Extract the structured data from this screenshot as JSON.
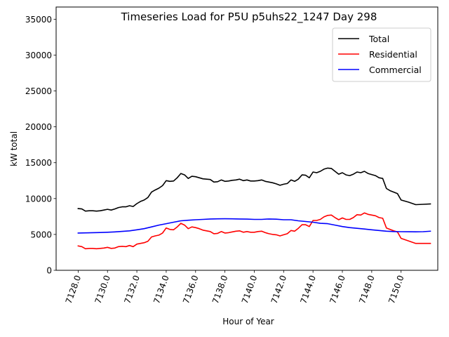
{
  "chart_data": {
    "type": "line",
    "title": "Timeseries Load for P5U p5uhs22_1247  Day 298",
    "xlabel": "Hour of Year",
    "ylabel": "kW total",
    "xlim": [
      7126.5,
      7152.5
    ],
    "ylim": [
      0,
      36700
    ],
    "xticks": [
      7128,
      7130,
      7132,
      7134,
      7136,
      7138,
      7140,
      7142,
      7144,
      7146,
      7148,
      7150
    ],
    "xtick_labels": [
      "7128.0",
      "7130.0",
      "7132.0",
      "7134.0",
      "7136.0",
      "7138.0",
      "7140.0",
      "7142.0",
      "7144.0",
      "7146.0",
      "7148.0",
      "7150.0"
    ],
    "yticks": [
      0,
      5000,
      10000,
      15000,
      20000,
      25000,
      30000,
      35000
    ],
    "ytick_labels": [
      "0",
      "5000",
      "10000",
      "15000",
      "20000",
      "25000",
      "30000",
      "35000"
    ],
    "legend_position": "top-right",
    "series": [
      {
        "name": "Total",
        "color": "#000000",
        "points": [
          [
            7128.0,
            8600
          ],
          [
            7128.25,
            8550
          ],
          [
            7128.5,
            8250
          ],
          [
            7128.75,
            8300
          ],
          [
            7129.0,
            8300
          ],
          [
            7129.25,
            8250
          ],
          [
            7129.5,
            8300
          ],
          [
            7129.75,
            8400
          ],
          [
            7130.0,
            8500
          ],
          [
            7130.25,
            8400
          ],
          [
            7130.5,
            8550
          ],
          [
            7130.75,
            8750
          ],
          [
            7131.0,
            8850
          ],
          [
            7131.25,
            8850
          ],
          [
            7131.5,
            9000
          ],
          [
            7131.75,
            8900
          ],
          [
            7132.0,
            9300
          ],
          [
            7132.25,
            9600
          ],
          [
            7132.5,
            9800
          ],
          [
            7132.75,
            10150
          ],
          [
            7133.0,
            10900
          ],
          [
            7133.25,
            11200
          ],
          [
            7133.5,
            11450
          ],
          [
            7133.75,
            11800
          ],
          [
            7134.0,
            12500
          ],
          [
            7134.25,
            12400
          ],
          [
            7134.5,
            12450
          ],
          [
            7134.75,
            12900
          ],
          [
            7135.0,
            13500
          ],
          [
            7135.25,
            13300
          ],
          [
            7135.5,
            12800
          ],
          [
            7135.75,
            13100
          ],
          [
            7136.0,
            13050
          ],
          [
            7136.25,
            12900
          ],
          [
            7136.5,
            12750
          ],
          [
            7136.75,
            12700
          ],
          [
            7137.0,
            12650
          ],
          [
            7137.25,
            12300
          ],
          [
            7137.5,
            12350
          ],
          [
            7137.75,
            12600
          ],
          [
            7138.0,
            12400
          ],
          [
            7138.25,
            12450
          ],
          [
            7138.5,
            12550
          ],
          [
            7138.75,
            12600
          ],
          [
            7139.0,
            12700
          ],
          [
            7139.25,
            12500
          ],
          [
            7139.5,
            12600
          ],
          [
            7139.75,
            12450
          ],
          [
            7140.0,
            12450
          ],
          [
            7140.25,
            12500
          ],
          [
            7140.5,
            12600
          ],
          [
            7140.75,
            12400
          ],
          [
            7141.0,
            12300
          ],
          [
            7141.25,
            12200
          ],
          [
            7141.5,
            12050
          ],
          [
            7141.75,
            11850
          ],
          [
            7142.0,
            12000
          ],
          [
            7142.25,
            12100
          ],
          [
            7142.5,
            12600
          ],
          [
            7142.75,
            12400
          ],
          [
            7143.0,
            12700
          ],
          [
            7143.25,
            13300
          ],
          [
            7143.5,
            13250
          ],
          [
            7143.75,
            12900
          ],
          [
            7144.0,
            13700
          ],
          [
            7144.25,
            13600
          ],
          [
            7144.5,
            13800
          ],
          [
            7144.75,
            14100
          ],
          [
            7145.0,
            14250
          ],
          [
            7145.25,
            14200
          ],
          [
            7145.5,
            13800
          ],
          [
            7145.75,
            13400
          ],
          [
            7146.0,
            13600
          ],
          [
            7146.25,
            13300
          ],
          [
            7146.5,
            13200
          ],
          [
            7146.75,
            13400
          ],
          [
            7147.0,
            13700
          ],
          [
            7147.25,
            13600
          ],
          [
            7147.5,
            13800
          ],
          [
            7147.75,
            13500
          ],
          [
            7148.0,
            13350
          ],
          [
            7148.25,
            13200
          ],
          [
            7148.5,
            12900
          ],
          [
            7148.75,
            12800
          ],
          [
            7149.0,
            11400
          ],
          [
            7149.25,
            11100
          ],
          [
            7149.5,
            10900
          ],
          [
            7149.75,
            10700
          ],
          [
            7150.0,
            9800
          ],
          [
            7150.5,
            9500
          ],
          [
            7151.0,
            9150
          ],
          [
            7151.5,
            9200
          ],
          [
            7152.0,
            9250
          ]
        ]
      },
      {
        "name": "Residential",
        "color": "#ff0000",
        "points": [
          [
            7128.0,
            3400
          ],
          [
            7128.25,
            3300
          ],
          [
            7128.5,
            3000
          ],
          [
            7128.75,
            3050
          ],
          [
            7129.0,
            3050
          ],
          [
            7129.25,
            3000
          ],
          [
            7129.5,
            3050
          ],
          [
            7129.75,
            3100
          ],
          [
            7130.0,
            3200
          ],
          [
            7130.25,
            3050
          ],
          [
            7130.5,
            3100
          ],
          [
            7130.75,
            3300
          ],
          [
            7131.0,
            3350
          ],
          [
            7131.25,
            3300
          ],
          [
            7131.5,
            3450
          ],
          [
            7131.75,
            3300
          ],
          [
            7132.0,
            3650
          ],
          [
            7132.25,
            3750
          ],
          [
            7132.5,
            3850
          ],
          [
            7132.75,
            4050
          ],
          [
            7133.0,
            4650
          ],
          [
            7133.25,
            4800
          ],
          [
            7133.5,
            4900
          ],
          [
            7133.75,
            5200
          ],
          [
            7134.0,
            5900
          ],
          [
            7134.25,
            5700
          ],
          [
            7134.5,
            5650
          ],
          [
            7134.75,
            6050
          ],
          [
            7135.0,
            6550
          ],
          [
            7135.25,
            6300
          ],
          [
            7135.5,
            5800
          ],
          [
            7135.75,
            6050
          ],
          [
            7136.0,
            5950
          ],
          [
            7136.25,
            5800
          ],
          [
            7136.5,
            5600
          ],
          [
            7136.75,
            5500
          ],
          [
            7137.0,
            5400
          ],
          [
            7137.25,
            5100
          ],
          [
            7137.5,
            5150
          ],
          [
            7137.75,
            5400
          ],
          [
            7138.0,
            5200
          ],
          [
            7138.25,
            5250
          ],
          [
            7138.5,
            5350
          ],
          [
            7138.75,
            5450
          ],
          [
            7139.0,
            5500
          ],
          [
            7139.25,
            5300
          ],
          [
            7139.5,
            5400
          ],
          [
            7139.75,
            5300
          ],
          [
            7140.0,
            5300
          ],
          [
            7140.25,
            5400
          ],
          [
            7140.5,
            5450
          ],
          [
            7140.75,
            5250
          ],
          [
            7141.0,
            5100
          ],
          [
            7141.25,
            5000
          ],
          [
            7141.5,
            4950
          ],
          [
            7141.75,
            4800
          ],
          [
            7142.0,
            4950
          ],
          [
            7142.25,
            5100
          ],
          [
            7142.5,
            5550
          ],
          [
            7142.75,
            5450
          ],
          [
            7143.0,
            5850
          ],
          [
            7143.25,
            6350
          ],
          [
            7143.5,
            6350
          ],
          [
            7143.75,
            6100
          ],
          [
            7144.0,
            6950
          ],
          [
            7144.25,
            6950
          ],
          [
            7144.5,
            7100
          ],
          [
            7144.75,
            7450
          ],
          [
            7145.0,
            7650
          ],
          [
            7145.25,
            7700
          ],
          [
            7145.5,
            7350
          ],
          [
            7145.75,
            7050
          ],
          [
            7146.0,
            7300
          ],
          [
            7146.25,
            7100
          ],
          [
            7146.5,
            7100
          ],
          [
            7146.75,
            7350
          ],
          [
            7147.0,
            7750
          ],
          [
            7147.25,
            7700
          ],
          [
            7147.5,
            8000
          ],
          [
            7147.75,
            7800
          ],
          [
            7148.0,
            7700
          ],
          [
            7148.25,
            7600
          ],
          [
            7148.5,
            7350
          ],
          [
            7148.75,
            7250
          ],
          [
            7149.0,
            5900
          ],
          [
            7149.25,
            5700
          ],
          [
            7149.5,
            5500
          ],
          [
            7149.75,
            5350
          ],
          [
            7150.0,
            4450
          ],
          [
            7150.5,
            4100
          ],
          [
            7151.0,
            3750
          ],
          [
            7151.5,
            3750
          ],
          [
            7152.0,
            3750
          ]
        ]
      },
      {
        "name": "Commercial",
        "color": "#0000ff",
        "points": [
          [
            7128.0,
            5200
          ],
          [
            7128.5,
            5220
          ],
          [
            7129.0,
            5250
          ],
          [
            7129.5,
            5270
          ],
          [
            7130.0,
            5300
          ],
          [
            7130.5,
            5350
          ],
          [
            7131.0,
            5420
          ],
          [
            7131.5,
            5500
          ],
          [
            7132.0,
            5650
          ],
          [
            7132.5,
            5800
          ],
          [
            7133.0,
            6050
          ],
          [
            7133.5,
            6300
          ],
          [
            7134.0,
            6500
          ],
          [
            7134.5,
            6700
          ],
          [
            7135.0,
            6900
          ],
          [
            7135.5,
            6980
          ],
          [
            7136.0,
            7050
          ],
          [
            7136.5,
            7100
          ],
          [
            7137.0,
            7150
          ],
          [
            7137.5,
            7170
          ],
          [
            7138.0,
            7180
          ],
          [
            7138.5,
            7170
          ],
          [
            7139.0,
            7150
          ],
          [
            7139.5,
            7130
          ],
          [
            7140.0,
            7100
          ],
          [
            7140.5,
            7100
          ],
          [
            7141.0,
            7150
          ],
          [
            7141.5,
            7120
          ],
          [
            7142.0,
            7050
          ],
          [
            7142.5,
            7050
          ],
          [
            7143.0,
            6900
          ],
          [
            7143.5,
            6800
          ],
          [
            7144.0,
            6700
          ],
          [
            7144.5,
            6550
          ],
          [
            7145.0,
            6500
          ],
          [
            7145.5,
            6300
          ],
          [
            7146.0,
            6100
          ],
          [
            7146.5,
            5950
          ],
          [
            7147.0,
            5850
          ],
          [
            7147.5,
            5750
          ],
          [
            7148.0,
            5650
          ],
          [
            7148.5,
            5550
          ],
          [
            7149.0,
            5450
          ],
          [
            7149.5,
            5400
          ],
          [
            7150.0,
            5380
          ],
          [
            7150.5,
            5370
          ],
          [
            7151.0,
            5360
          ],
          [
            7151.5,
            5380
          ],
          [
            7152.0,
            5450
          ]
        ]
      }
    ]
  }
}
